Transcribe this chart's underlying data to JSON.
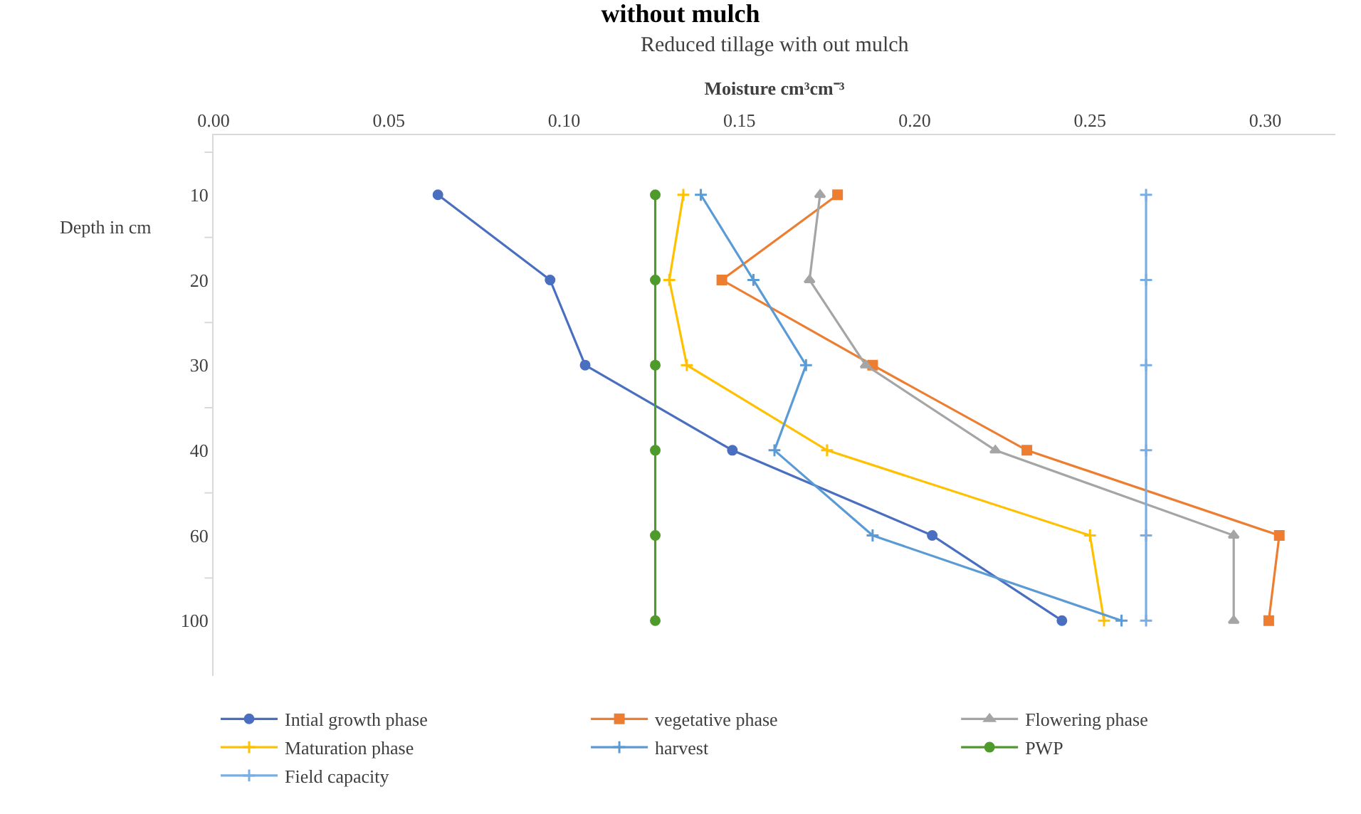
{
  "chart_data": {
    "type": "line",
    "orientation": "horizontal",
    "title": "without mulch",
    "subtitle": "Reduced tillage with out mulch",
    "xlabel": "Moisture cm³cm⁻³",
    "ylabel": "Depth in cm",
    "categories": [
      "10",
      "20",
      "30",
      "40",
      "60",
      "100"
    ],
    "xlim": [
      0,
      0.32
    ],
    "xticks": [
      {
        "value": 0,
        "label": "0.00"
      },
      0.05,
      {
        "value": 0.1,
        "label": "0.10"
      },
      0.15,
      {
        "value": 0.2,
        "label": "0.20"
      },
      0.25,
      {
        "value": 0.3,
        "label": "0.30"
      }
    ],
    "grid": false,
    "legend": "bottom",
    "line_style": "solid",
    "series": [
      {
        "name": "Intial growth phase",
        "color": "#4a6fc0",
        "marker": "circle",
        "values": [
          0.064,
          0.096,
          0.106,
          0.148,
          0.205,
          0.242
        ]
      },
      {
        "name": "vegetative phase",
        "color": "#ed7d31",
        "marker": "square",
        "values": [
          0.178,
          0.145,
          0.188,
          0.232,
          0.304,
          0.301
        ]
      },
      {
        "name": "Flowering phase",
        "color": "#a5a5a5",
        "marker": "triangle",
        "values": [
          0.173,
          0.17,
          0.186,
          0.223,
          0.291,
          0.291
        ]
      },
      {
        "name": "Maturation phase",
        "color": "#ffc000",
        "marker": "cross",
        "values": [
          0.134,
          0.13,
          0.135,
          0.175,
          0.25,
          0.254
        ]
      },
      {
        "name": "harvest",
        "color": "#5b9bd5",
        "marker": "cross",
        "values": [
          0.139,
          0.154,
          0.169,
          0.16,
          0.188,
          0.259
        ]
      },
      {
        "name": "PWP",
        "color": "#4e9a2a",
        "marker": "circle",
        "values": [
          0.126,
          0.126,
          0.126,
          0.126,
          0.126,
          0.126
        ]
      },
      {
        "name": "Field capacity",
        "color": "#7aaee3",
        "marker": "cross",
        "values": [
          0.266,
          0.266,
          0.266,
          0.266,
          0.266,
          0.266
        ]
      }
    ]
  }
}
